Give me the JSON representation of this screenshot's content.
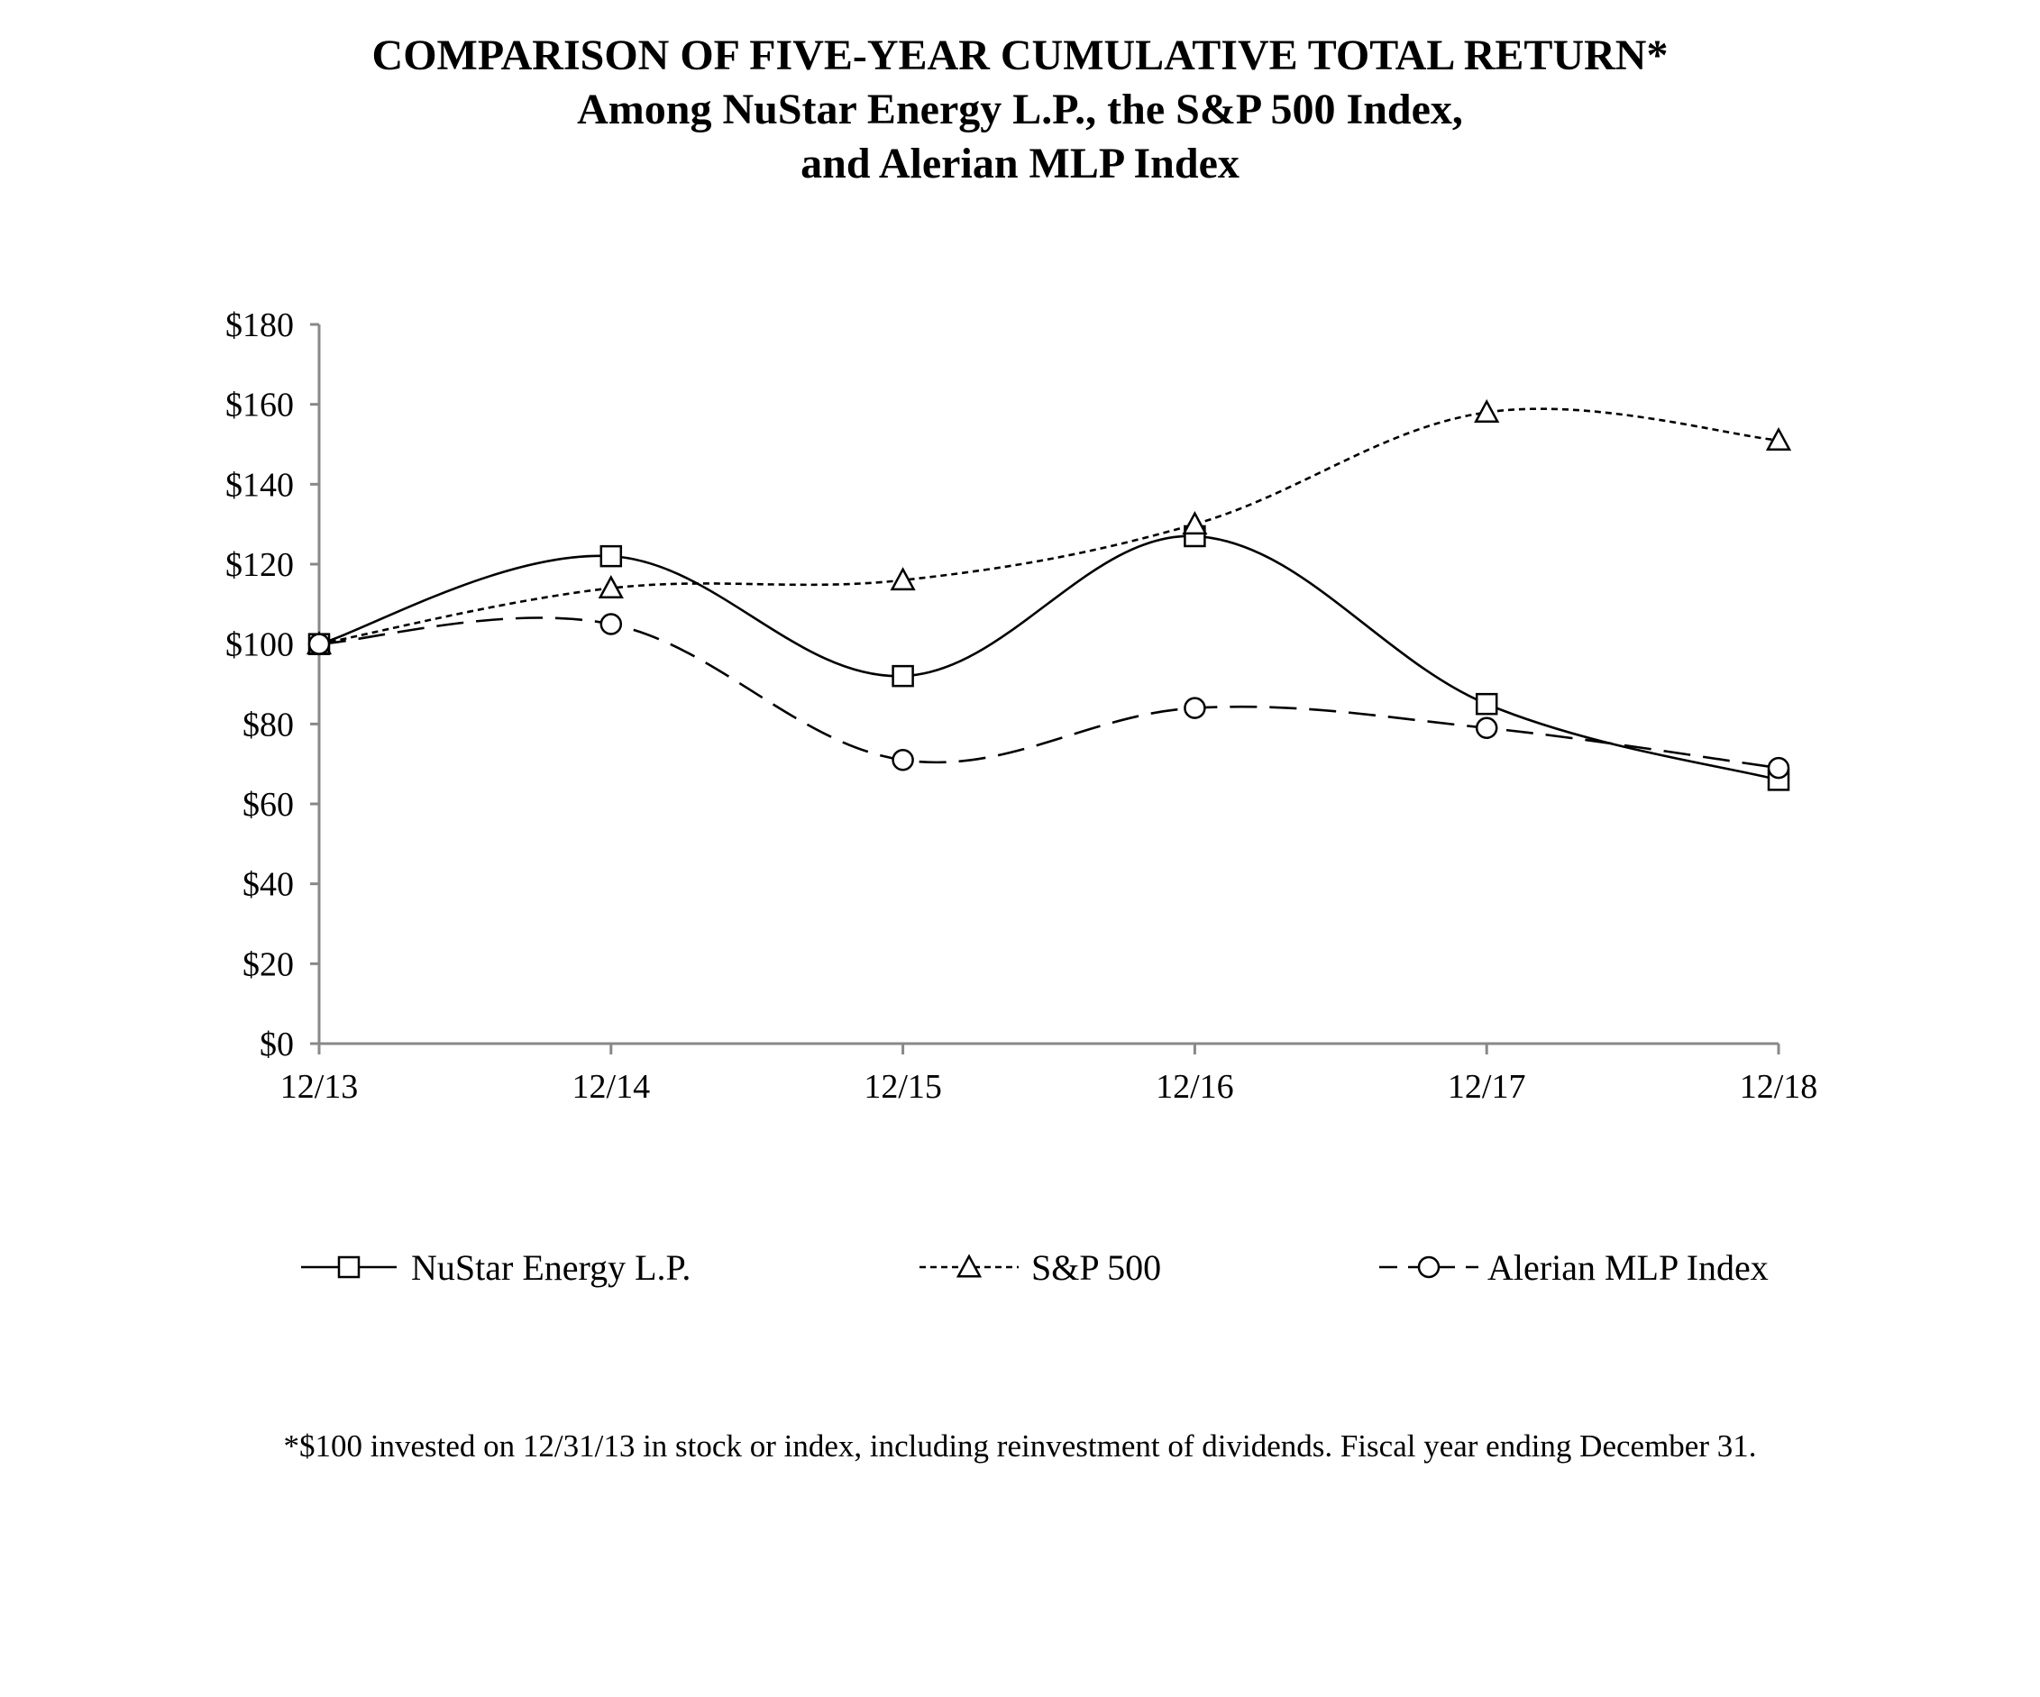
{
  "chart_data": {
    "type": "line",
    "title": "COMPARISON OF FIVE-YEAR  CUMULATIVE  TOTAL RETURN*",
    "subtitle": [
      "Among  NuStar Energy  L.P., the S&P 500 Index,",
      "and Alerian  MLP Index"
    ],
    "categories": [
      "12/13",
      "12/14",
      "12/15",
      "12/16",
      "12/17",
      "12/18"
    ],
    "y_tick_labels": [
      "$0",
      "$20",
      "$40",
      "$60",
      "$80",
      "$100",
      "$120",
      "$140",
      "$160",
      "$180"
    ],
    "y_ticks": [
      0,
      20,
      40,
      60,
      80,
      100,
      120,
      140,
      160,
      180
    ],
    "ylim": [
      0,
      180
    ],
    "xlabel": "",
    "ylabel": "",
    "grid": false,
    "legend_position": "bottom",
    "series": [
      {
        "name": "NuStar Energy L.P.",
        "marker": "square",
        "line_style": "solid",
        "values": [
          100,
          122,
          92,
          127,
          85,
          66
        ]
      },
      {
        "name": "S&P 500",
        "marker": "triangle",
        "line_style": "dotted",
        "values": [
          100,
          114,
          116,
          130,
          158,
          151
        ]
      },
      {
        "name": "Alerian MLP Index",
        "marker": "circle",
        "line_style": "dashed",
        "values": [
          100,
          105,
          71,
          84,
          79,
          69
        ]
      }
    ],
    "footnote": "*$100 invested on 12/31/13 in stock or index, including reinvestment of dividends. Fiscal year ending December 31."
  },
  "colors": {
    "line": "#000000",
    "axis": "#888888",
    "background": "#ffffff"
  }
}
